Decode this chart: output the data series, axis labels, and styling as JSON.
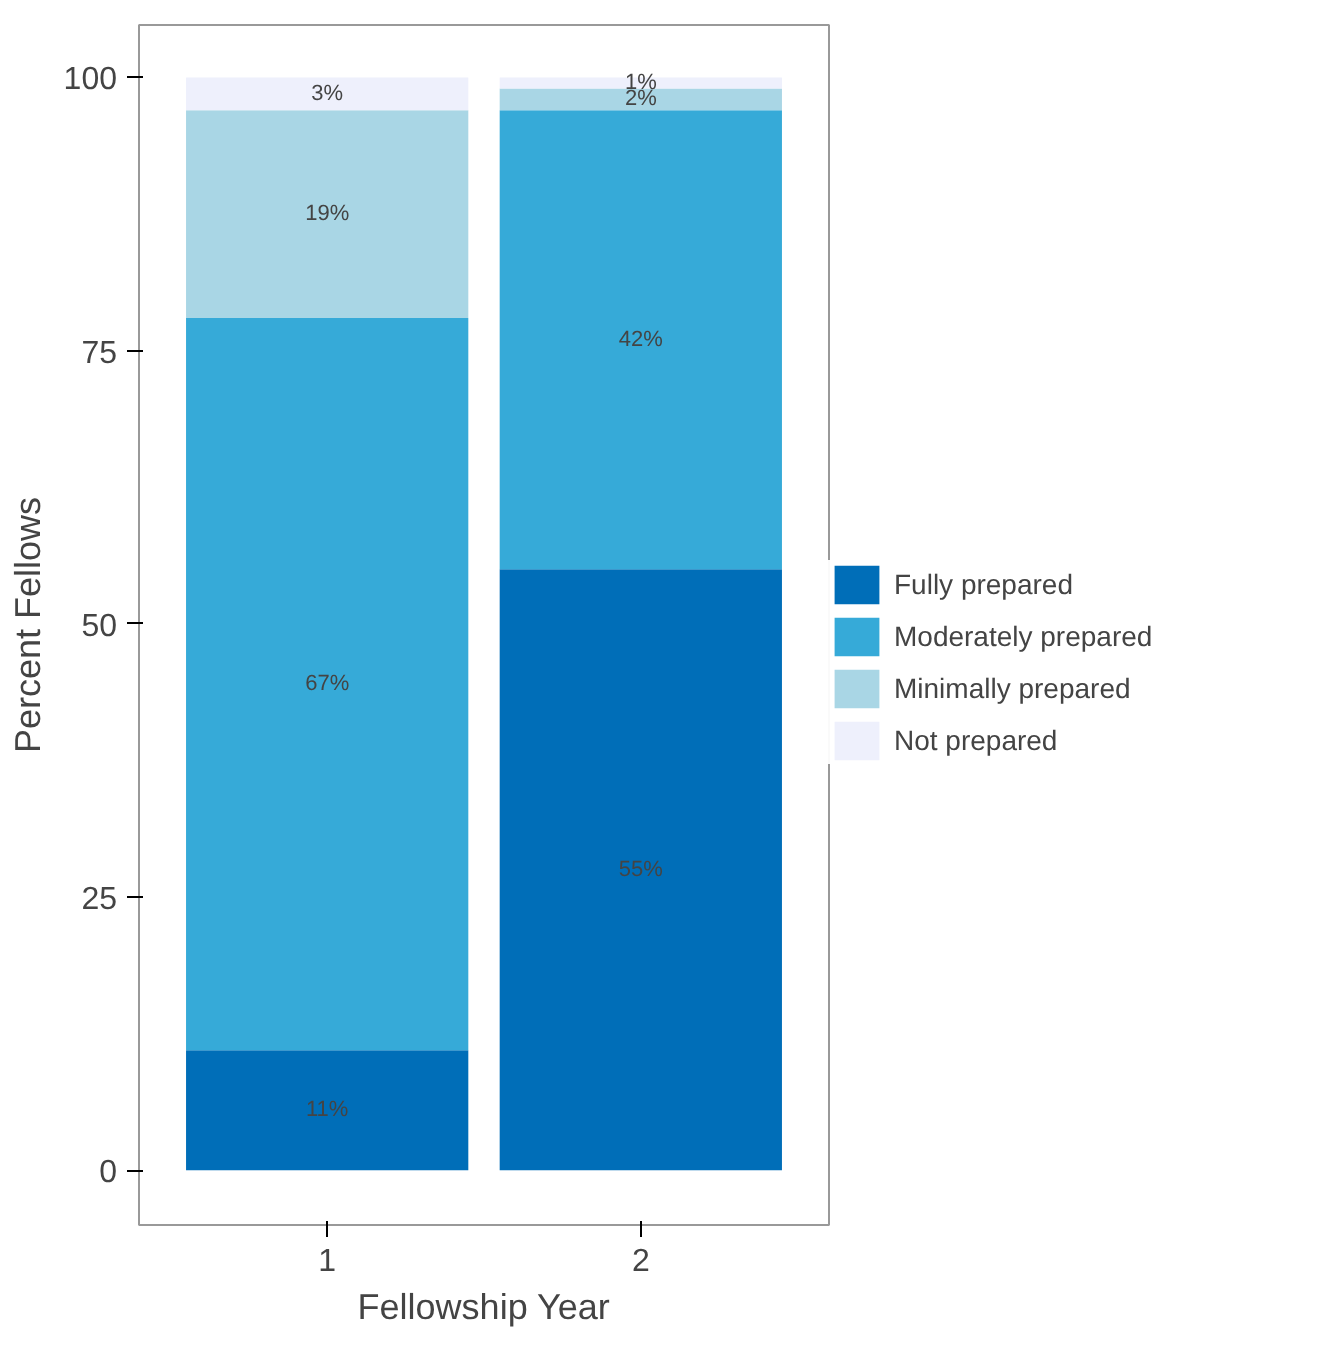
{
  "chart_data": {
    "type": "bar",
    "stacked": true,
    "xlabel": "Fellowship Year",
    "ylabel": "Percent Fellows",
    "categories": [
      "1",
      "2"
    ],
    "series": [
      {
        "name": "Fully prepared",
        "color": "#006eb8",
        "values": [
          11,
          55
        ]
      },
      {
        "name": "Moderately prepared",
        "color": "#36aad8",
        "values": [
          67,
          42
        ]
      },
      {
        "name": "Minimally prepared",
        "color": "#a9d6e5",
        "values": [
          19,
          2
        ]
      },
      {
        "name": "Not prepared",
        "color": "#eef0fc",
        "values": [
          3,
          1
        ]
      }
    ],
    "ylim": [
      -5,
      104.8
    ],
    "yticks": [
      0,
      25,
      50,
      75,
      100
    ],
    "grid": false,
    "legend": "right",
    "value_labels": [
      [
        "11%",
        "55%"
      ],
      [
        "67%",
        "42%"
      ],
      [
        "19%",
        "2%"
      ],
      [
        "3%",
        "1%"
      ]
    ]
  }
}
